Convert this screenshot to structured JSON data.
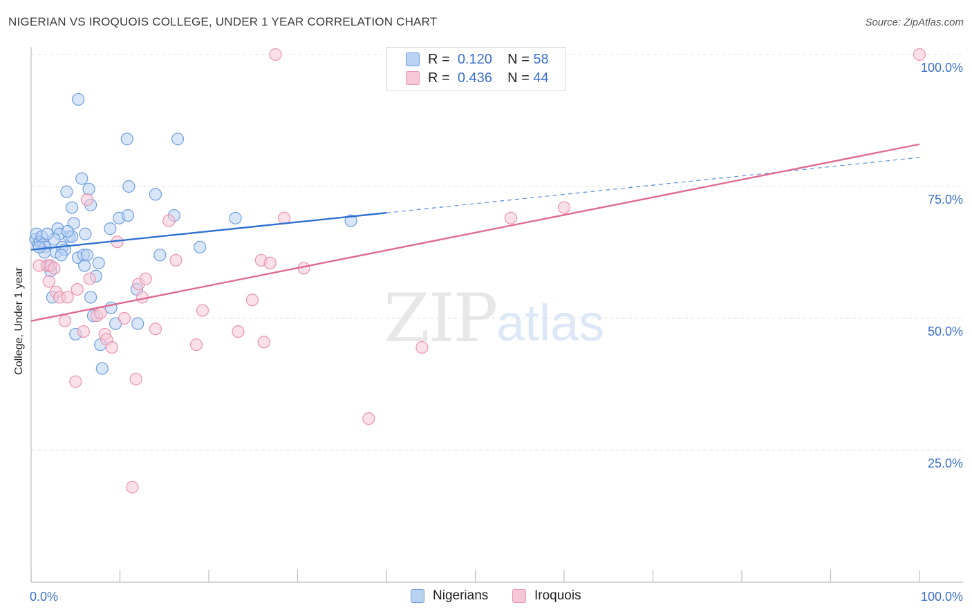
{
  "title": "NIGERIAN VS IROQUOIS COLLEGE, UNDER 1 YEAR CORRELATION CHART",
  "source": "Source: ZipAtlas.com",
  "watermark": {
    "zip": "ZIP",
    "atlas": "atlas"
  },
  "legend": {
    "r_label": "R =",
    "n_label": "N =",
    "nigerians": {
      "r": "0.120",
      "n": "58"
    },
    "iroquois": {
      "r": "0.436",
      "n": "44"
    }
  },
  "colors": {
    "blue_fill": "#b9d2f2",
    "blue_stroke": "#6d9de0",
    "blue_line": "#2e6fd0",
    "pink_fill": "#f6c7d6",
    "pink_stroke": "#ea93b0",
    "pink_line": "#e06a94",
    "tick_text": "#3a6fd0"
  },
  "chart_data": {
    "type": "scatter",
    "title": "NIGERIAN VS IROQUOIS COLLEGE, UNDER 1 YEAR CORRELATION CHART",
    "xlabel": "",
    "ylabel": "College, Under 1 year",
    "xlim": [
      0,
      100
    ],
    "ylim": [
      0,
      100
    ],
    "x_tick_labels": [
      "0.0%",
      "100.0%"
    ],
    "y_tick_labels": [
      {
        "v": 25,
        "label": "25.0%"
      },
      {
        "v": 50,
        "label": "50.0%"
      },
      {
        "v": 75,
        "label": "75.0%"
      },
      {
        "v": 100,
        "label": "100.0%"
      }
    ],
    "grid": true,
    "legend_position": "top-center",
    "series": [
      {
        "name": "Nigerians",
        "color": "blue",
        "r": 0.12,
        "n": 58,
        "trend": {
          "x0": 0,
          "y0": 63,
          "x1": 40,
          "y1": 70,
          "dash_to_x": 100,
          "dash_to_y": 80.5
        },
        "points": [
          [
            0.5,
            65
          ],
          [
            0.6,
            66
          ],
          [
            0.8,
            64
          ],
          [
            1,
            64.5
          ],
          [
            1.2,
            65.5
          ],
          [
            1.4,
            64
          ],
          [
            1.6,
            63.5
          ],
          [
            2,
            60
          ],
          [
            2.2,
            59
          ],
          [
            2.4,
            54
          ],
          [
            2.8,
            62.5
          ],
          [
            3,
            67
          ],
          [
            3.2,
            66
          ],
          [
            3.5,
            63.5
          ],
          [
            3.8,
            63
          ],
          [
            4,
            74
          ],
          [
            4.3,
            65.5
          ],
          [
            4.6,
            65.5
          ],
          [
            4.6,
            71
          ],
          [
            4.8,
            68
          ],
          [
            5,
            47
          ],
          [
            5.3,
            61.5
          ],
          [
            5.7,
            76.5
          ],
          [
            5.9,
            62
          ],
          [
            6,
            60
          ],
          [
            6.1,
            66
          ],
          [
            6.3,
            62
          ],
          [
            6.5,
            74.5
          ],
          [
            6.7,
            71.5
          ],
          [
            6.7,
            54
          ],
          [
            7,
            50.5
          ],
          [
            7.3,
            58
          ],
          [
            7.6,
            60.5
          ],
          [
            7.8,
            45
          ],
          [
            8,
            40.5
          ],
          [
            8.9,
            67
          ],
          [
            9,
            52
          ],
          [
            9.5,
            49
          ],
          [
            9.9,
            69
          ],
          [
            10.8,
            84
          ],
          [
            10.9,
            69.5
          ],
          [
            11,
            75
          ],
          [
            11.9,
            55.5
          ],
          [
            12,
            49
          ],
          [
            14,
            73.5
          ],
          [
            14.5,
            62
          ],
          [
            16.1,
            69.5
          ],
          [
            16.5,
            84
          ],
          [
            19,
            63.5
          ],
          [
            23,
            69
          ],
          [
            36,
            68.5
          ],
          [
            5.3,
            91.5
          ],
          [
            1.5,
            62.5
          ],
          [
            0.9,
            63.5
          ],
          [
            2.6,
            65
          ],
          [
            4.1,
            66.5
          ],
          [
            1.8,
            66
          ],
          [
            3.4,
            62
          ]
        ]
      },
      {
        "name": "Iroquois",
        "color": "pink",
        "r": 0.436,
        "n": 44,
        "trend": {
          "x0": 0,
          "y0": 49.5,
          "x1": 100,
          "y1": 83
        },
        "points": [
          [
            0.9,
            60
          ],
          [
            1.8,
            60
          ],
          [
            2,
            57
          ],
          [
            2.2,
            60
          ],
          [
            2.6,
            59.5
          ],
          [
            2.8,
            55
          ],
          [
            3.2,
            54
          ],
          [
            3.8,
            49.5
          ],
          [
            4.1,
            54
          ],
          [
            5,
            38
          ],
          [
            5.2,
            55.5
          ],
          [
            5.9,
            47.5
          ],
          [
            6.3,
            72.5
          ],
          [
            6.6,
            57.5
          ],
          [
            7.4,
            50.5
          ],
          [
            7.8,
            51
          ],
          [
            8.3,
            47
          ],
          [
            8.5,
            46
          ],
          [
            9.1,
            44.5
          ],
          [
            9.7,
            64.5
          ],
          [
            10.5,
            50
          ],
          [
            11.8,
            38.5
          ],
          [
            11.4,
            18
          ],
          [
            12.1,
            56.5
          ],
          [
            12.5,
            54
          ],
          [
            12.9,
            57.5
          ],
          [
            14,
            48
          ],
          [
            15.5,
            68.5
          ],
          [
            16.3,
            61
          ],
          [
            18.6,
            45
          ],
          [
            19.3,
            51.5
          ],
          [
            23.3,
            47.5
          ],
          [
            24.9,
            53.5
          ],
          [
            25.9,
            61
          ],
          [
            26.2,
            45.5
          ],
          [
            26.9,
            60.5
          ],
          [
            27.5,
            100
          ],
          [
            28.5,
            69
          ],
          [
            30.7,
            59.5
          ],
          [
            38,
            31
          ],
          [
            44,
            44.5
          ],
          [
            54,
            69
          ],
          [
            60,
            71
          ],
          [
            100,
            100
          ]
        ]
      }
    ]
  }
}
